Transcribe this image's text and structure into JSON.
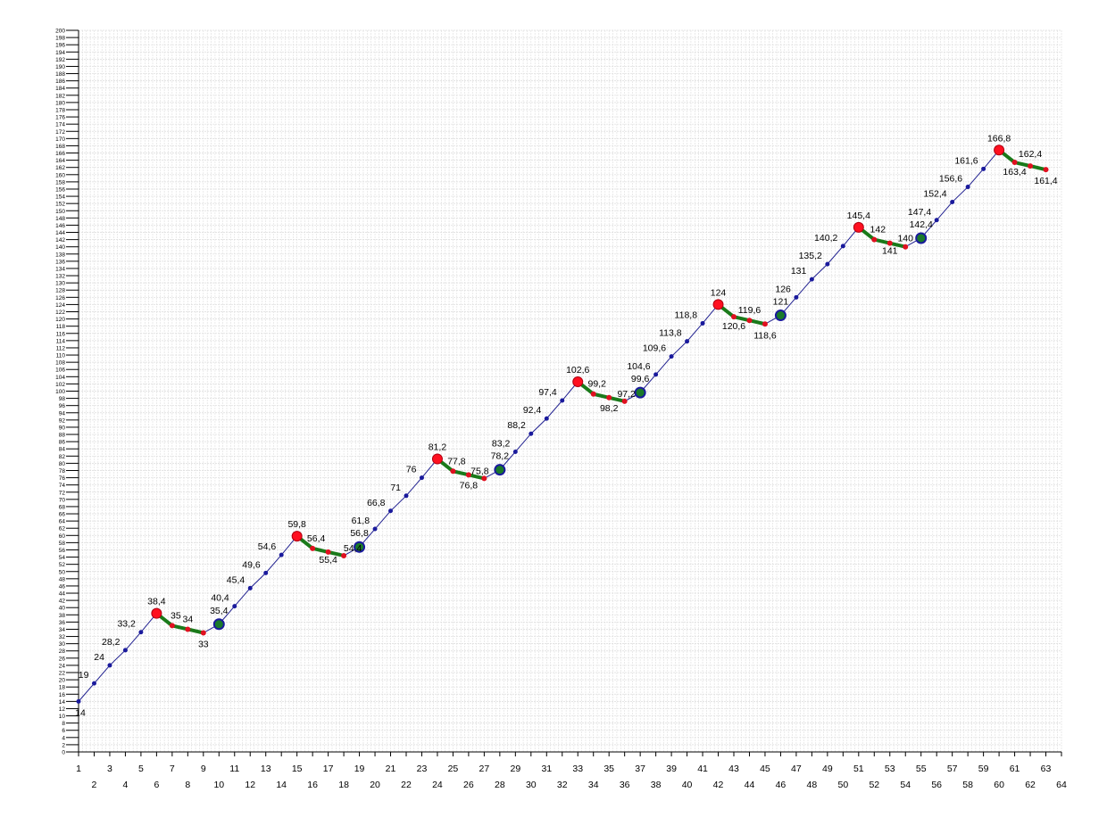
{
  "chart_data": {
    "type": "line",
    "title": "",
    "xlabel": "",
    "ylabel": "",
    "xlim": [
      1,
      64
    ],
    "ylim": [
      0,
      200
    ],
    "grid": true,
    "x_ticks": [
      1,
      2,
      3,
      4,
      5,
      6,
      7,
      8,
      9,
      10,
      11,
      12,
      13,
      14,
      15,
      16,
      17,
      18,
      19,
      20,
      21,
      22,
      23,
      24,
      25,
      26,
      27,
      28,
      29,
      30,
      31,
      32,
      33,
      34,
      35,
      36,
      37,
      38,
      39,
      40,
      41,
      42,
      43,
      44,
      45,
      46,
      47,
      48,
      49,
      50,
      51,
      52,
      53,
      54,
      55,
      56,
      57,
      58,
      59,
      60,
      61,
      62,
      63,
      64
    ],
    "points": [
      {
        "x": 1,
        "y": 14,
        "label": "14"
      },
      {
        "x": 2,
        "y": 19,
        "label": "19"
      },
      {
        "x": 3,
        "y": 24,
        "label": "24"
      },
      {
        "x": 4,
        "y": 28.2,
        "label": "28,2"
      },
      {
        "x": 5,
        "y": 33.2,
        "label": "33,2"
      },
      {
        "x": 6,
        "y": 38.4,
        "label": "38,4"
      },
      {
        "x": 7,
        "y": 35,
        "label": "35"
      },
      {
        "x": 8,
        "y": 34,
        "label": "34"
      },
      {
        "x": 9,
        "y": 33,
        "label": "33"
      },
      {
        "x": 10,
        "y": 35.4,
        "label": "35,4"
      },
      {
        "x": 11,
        "y": 40.4,
        "label": "40,4"
      },
      {
        "x": 12,
        "y": 45.4,
        "label": "45,4"
      },
      {
        "x": 13,
        "y": 49.6,
        "label": "49,6"
      },
      {
        "x": 14,
        "y": 54.6,
        "label": "54,6"
      },
      {
        "x": 15,
        "y": 59.8,
        "label": "59,8"
      },
      {
        "x": 16,
        "y": 56.4,
        "label": "56,4"
      },
      {
        "x": 17,
        "y": 55.4,
        "label": "55,4"
      },
      {
        "x": 18,
        "y": 54.4,
        "label": "54,4"
      },
      {
        "x": 19,
        "y": 56.8,
        "label": "56,8"
      },
      {
        "x": 20,
        "y": 61.8,
        "label": "61,8"
      },
      {
        "x": 21,
        "y": 66.8,
        "label": "66,8"
      },
      {
        "x": 22,
        "y": 71,
        "label": "71"
      },
      {
        "x": 23,
        "y": 76,
        "label": "76"
      },
      {
        "x": 24,
        "y": 81.2,
        "label": "81,2"
      },
      {
        "x": 25,
        "y": 77.8,
        "label": "77,8"
      },
      {
        "x": 26,
        "y": 76.8,
        "label": "76,8"
      },
      {
        "x": 27,
        "y": 75.8,
        "label": "75,8"
      },
      {
        "x": 28,
        "y": 78.2,
        "label": "78,2"
      },
      {
        "x": 29,
        "y": 83.2,
        "label": "83,2"
      },
      {
        "x": 30,
        "y": 88.2,
        "label": "88,2"
      },
      {
        "x": 31,
        "y": 92.4,
        "label": "92,4"
      },
      {
        "x": 32,
        "y": 97.4,
        "label": "97,4"
      },
      {
        "x": 33,
        "y": 102.6,
        "label": "102,6"
      },
      {
        "x": 34,
        "y": 99.2,
        "label": "99,2"
      },
      {
        "x": 35,
        "y": 98.2,
        "label": "98,2"
      },
      {
        "x": 36,
        "y": 97.2,
        "label": "97,2"
      },
      {
        "x": 37,
        "y": 99.6,
        "label": "99,6"
      },
      {
        "x": 38,
        "y": 104.6,
        "label": "104,6"
      },
      {
        "x": 39,
        "y": 109.6,
        "label": "109,6"
      },
      {
        "x": 40,
        "y": 113.8,
        "label": "113,8"
      },
      {
        "x": 41,
        "y": 118.8,
        "label": "118,8"
      },
      {
        "x": 42,
        "y": 124,
        "label": "124"
      },
      {
        "x": 43,
        "y": 120.6,
        "label": "120,6"
      },
      {
        "x": 44,
        "y": 119.6,
        "label": "119,6"
      },
      {
        "x": 45,
        "y": 118.6,
        "label": "118,6"
      },
      {
        "x": 46,
        "y": 121,
        "label": "121"
      },
      {
        "x": 47,
        "y": 126,
        "label": "126"
      },
      {
        "x": 48,
        "y": 131,
        "label": "131"
      },
      {
        "x": 49,
        "y": 135.2,
        "label": "135,2"
      },
      {
        "x": 50,
        "y": 140.2,
        "label": "140,2"
      },
      {
        "x": 51,
        "y": 145.4,
        "label": "145,4"
      },
      {
        "x": 52,
        "y": 142,
        "label": "142"
      },
      {
        "x": 53,
        "y": 141,
        "label": "141"
      },
      {
        "x": 54,
        "y": 140,
        "label": "140"
      },
      {
        "x": 55,
        "y": 142.4,
        "label": "142,4"
      },
      {
        "x": 56,
        "y": 147.4,
        "label": "147,4"
      },
      {
        "x": 57,
        "y": 152.4,
        "label": "152,4"
      },
      {
        "x": 58,
        "y": 156.6,
        "label": "156,6"
      },
      {
        "x": 59,
        "y": 161.6,
        "label": "161,6"
      },
      {
        "x": 60,
        "y": 166.8,
        "label": "166,8"
      },
      {
        "x": 61,
        "y": 163.4,
        "label": "163,4"
      },
      {
        "x": 62,
        "y": 162.4,
        "label": "162,4"
      },
      {
        "x": 63,
        "y": 161.4,
        "label": "161,4"
      }
    ],
    "peaks_x": [
      6,
      15,
      24,
      33,
      42,
      51,
      60
    ],
    "troughs_x": [
      10,
      19,
      28,
      37,
      46,
      55
    ],
    "colors": {
      "line": "#1f1f8f",
      "point": "#1a1a9c",
      "decline": "#1a7a1a",
      "peak": "#ff1020",
      "trough_fill": "#1a7a2a",
      "trough_ring": "#1a1a9c",
      "decline_dot": "#e01020",
      "grid": "#dcdcdc",
      "axis": "#000000"
    }
  }
}
